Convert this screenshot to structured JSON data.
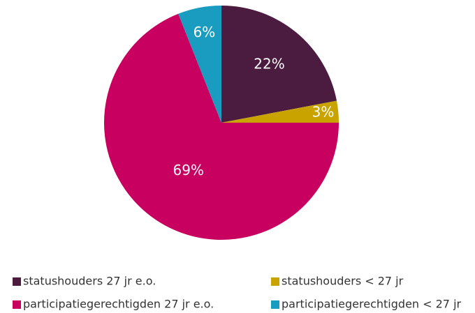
{
  "chart_data": {
    "type": "pie",
    "categories": [
      "statushouders 27 jr e.o.",
      "statushouders < 27 jr",
      "participatiegerechtigden 27 jr e.o.",
      "participatiegerechtigden < 27 jr"
    ],
    "values": [
      22,
      3,
      69,
      6
    ],
    "value_labels": [
      "22%",
      "3%",
      "69%",
      "6%"
    ],
    "colors": [
      "#4b1b40",
      "#c9a300",
      "#c8005f",
      "#1a9cc0"
    ],
    "legend": "bottom"
  }
}
